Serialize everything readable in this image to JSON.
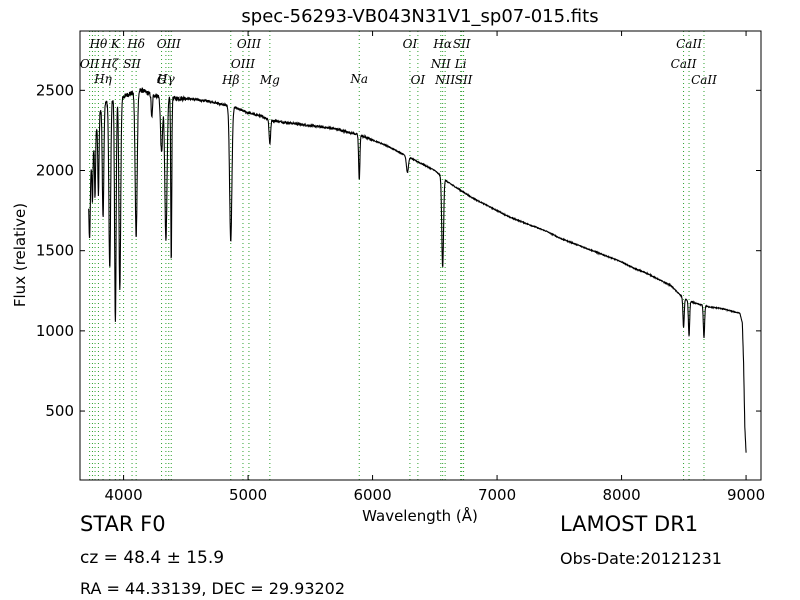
{
  "chart_data": {
    "type": "line",
    "title": "spec-56293-VB043N31V1_sp07-015.fits",
    "xlabel": "Wavelength (Å)",
    "ylabel": "Flux (relative)",
    "xlim": [
      3650,
      9120
    ],
    "ylim": [
      70,
      2870
    ],
    "xticks": [
      4000,
      5000,
      6000,
      7000,
      8000,
      9000
    ],
    "yticks": [
      500,
      1000,
      1500,
      2000,
      2500
    ],
    "grid": false,
    "line_color": "#000000",
    "marker_color": "#2ca02c",
    "continuum": [
      [
        3720,
        1900
      ],
      [
        3760,
        2150
      ],
      [
        3800,
        2360
      ],
      [
        3850,
        2420
      ],
      [
        3900,
        2440
      ],
      [
        3950,
        2450
      ],
      [
        4000,
        2460
      ],
      [
        4050,
        2480
      ],
      [
        4100,
        2490
      ],
      [
        4150,
        2500
      ],
      [
        4200,
        2480
      ],
      [
        4250,
        2470
      ],
      [
        4300,
        2460
      ],
      [
        4400,
        2450
      ],
      [
        4500,
        2450
      ],
      [
        4600,
        2440
      ],
      [
        4700,
        2430
      ],
      [
        4800,
        2410
      ],
      [
        4900,
        2390
      ],
      [
        5000,
        2360
      ],
      [
        5100,
        2340
      ],
      [
        5200,
        2310
      ],
      [
        5300,
        2300
      ],
      [
        5400,
        2290
      ],
      [
        5500,
        2280
      ],
      [
        5600,
        2270
      ],
      [
        5700,
        2260
      ],
      [
        5800,
        2240
      ],
      [
        5900,
        2220
      ],
      [
        6000,
        2190
      ],
      [
        6100,
        2160
      ],
      [
        6200,
        2120
      ],
      [
        6300,
        2080
      ],
      [
        6400,
        2040
      ],
      [
        6500,
        2000
      ],
      [
        6600,
        1930
      ],
      [
        6700,
        1880
      ],
      [
        6800,
        1830
      ],
      [
        6900,
        1790
      ],
      [
        7000,
        1750
      ],
      [
        7100,
        1710
      ],
      [
        7200,
        1680
      ],
      [
        7300,
        1650
      ],
      [
        7400,
        1620
      ],
      [
        7500,
        1580
      ],
      [
        7600,
        1550
      ],
      [
        7700,
        1520
      ],
      [
        7800,
        1490
      ],
      [
        7900,
        1460
      ],
      [
        8000,
        1430
      ],
      [
        8100,
        1390
      ],
      [
        8200,
        1360
      ],
      [
        8300,
        1320
      ],
      [
        8400,
        1280
      ],
      [
        8500,
        1200
      ],
      [
        8600,
        1170
      ],
      [
        8700,
        1150
      ],
      [
        8800,
        1140
      ],
      [
        8900,
        1120
      ],
      [
        8950,
        1110
      ],
      [
        8970,
        1050
      ],
      [
        8980,
        800
      ],
      [
        8990,
        400
      ],
      [
        9000,
        240
      ]
    ],
    "absorption_lines": [
      {
        "center": 3727,
        "depth": 380,
        "width": 5
      },
      {
        "center": 3750,
        "depth": 280,
        "width": 4
      },
      {
        "center": 3771,
        "depth": 380,
        "width": 4
      },
      {
        "center": 3798,
        "depth": 500,
        "width": 5
      },
      {
        "center": 3835,
        "depth": 700,
        "width": 6
      },
      {
        "center": 3889,
        "depth": 1050,
        "width": 7
      },
      {
        "center": 3934,
        "depth": 1400,
        "width": 6
      },
      {
        "center": 3970,
        "depth": 1200,
        "width": 7
      },
      {
        "center": 4101,
        "depth": 900,
        "width": 8
      },
      {
        "center": 4227,
        "depth": 150,
        "width": 5
      },
      {
        "center": 4305,
        "depth": 350,
        "width": 8
      },
      {
        "center": 4340,
        "depth": 880,
        "width": 9
      },
      {
        "center": 4383,
        "depth": 1030,
        "width": 4
      },
      {
        "center": 4861,
        "depth": 840,
        "width": 9
      },
      {
        "center": 5175,
        "depth": 150,
        "width": 6
      },
      {
        "center": 5893,
        "depth": 280,
        "width": 5
      },
      {
        "center": 6280,
        "depth": 100,
        "width": 8
      },
      {
        "center": 6563,
        "depth": 560,
        "width": 7
      },
      {
        "center": 8498,
        "depth": 180,
        "width": 5
      },
      {
        "center": 8542,
        "depth": 220,
        "width": 5
      },
      {
        "center": 8662,
        "depth": 200,
        "width": 5
      }
    ],
    "line_markers": [
      {
        "label": "OII",
        "wavelength": 3727,
        "row": 1
      },
      {
        "label": "Hθ",
        "wavelength": 3798,
        "row": 0
      },
      {
        "label": "Hη",
        "wavelength": 3835,
        "row": 2
      },
      {
        "label": "Hζ",
        "wavelength": 3889,
        "row": 1
      },
      {
        "label": "K",
        "wavelength": 3934,
        "row": 0
      },
      {
        "label": "SII",
        "wavelength": 4068,
        "row": 1
      },
      {
        "label": "Hδ",
        "wavelength": 4101,
        "row": 0
      },
      {
        "label": "G",
        "wavelength": 4305,
        "row": 3
      },
      {
        "label": "Hγ",
        "wavelength": 4340,
        "row": 2
      },
      {
        "label": "OIII",
        "wavelength": 4363,
        "row": 0
      },
      {
        "label": "Hβ",
        "wavelength": 4861,
        "row": 3
      },
      {
        "label": "OIII",
        "wavelength": 4959,
        "row": 1
      },
      {
        "label": "OIII",
        "wavelength": 5007,
        "row": 0
      },
      {
        "label": "Mg",
        "wavelength": 5175,
        "row": 3
      },
      {
        "label": "Na",
        "wavelength": 5893,
        "row": 2
      },
      {
        "label": "OI",
        "wavelength": 6300,
        "row": 0
      },
      {
        "label": "OI",
        "wavelength": 6364,
        "row": 3
      },
      {
        "label": "NII",
        "wavelength": 6548,
        "row": 1
      },
      {
        "label": "NII",
        "wavelength": 6583,
        "row": 3
      },
      {
        "label": "Hα",
        "wavelength": 6563,
        "row": 0
      },
      {
        "label": "Li",
        "wavelength": 6708,
        "row": 1
      },
      {
        "label": "SII",
        "wavelength": 6716,
        "row": 0
      },
      {
        "label": "SII",
        "wavelength": 6731,
        "row": 3
      },
      {
        "label": "CaII",
        "wavelength": 8498,
        "row": 1
      },
      {
        "label": "CaII",
        "wavelength": 8542,
        "row": 0
      },
      {
        "label": "CaII",
        "wavelength": 8662,
        "row": 3
      }
    ],
    "extra_marker_lines": [
      3750,
      3771,
      3970,
      4000,
      4383,
      6716,
      6731
    ]
  },
  "info": {
    "class_label": "STAR   F0",
    "survey": "LAMOST DR1",
    "cz": "cz = 48.4  ± 15.9",
    "obs_date": "Obs-Date:20121231",
    "radec": "RA = 44.33139, DEC = 29.93202"
  }
}
